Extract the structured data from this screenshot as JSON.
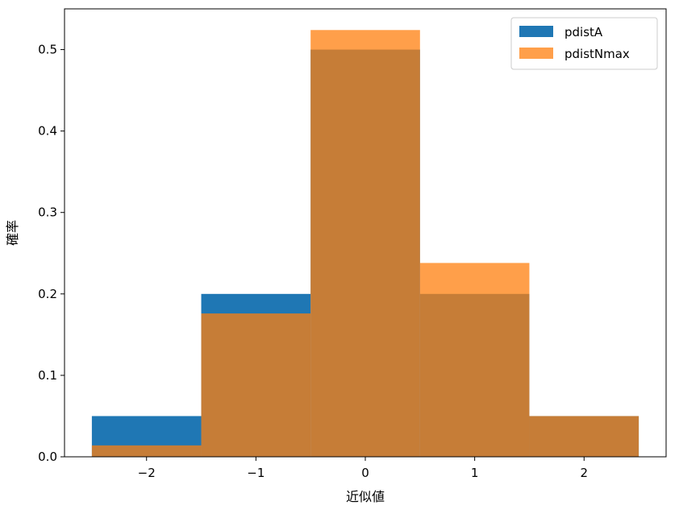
{
  "chart_data": {
    "type": "bar",
    "title": "",
    "xlabel": "近似値",
    "ylabel": "確率",
    "xlim": [
      -2.75,
      2.75
    ],
    "ylim": [
      0.0,
      0.55
    ],
    "xticks": [
      -2,
      -1,
      0,
      1,
      2
    ],
    "xtick_labels": [
      "−2",
      "−1",
      "0",
      "1",
      "2"
    ],
    "yticks": [
      0.0,
      0.1,
      0.2,
      0.3,
      0.4,
      0.5
    ],
    "ytick_labels": [
      "0.0",
      "0.1",
      "0.2",
      "0.3",
      "0.4",
      "0.5"
    ],
    "bins": [
      [
        -2.5,
        -1.5
      ],
      [
        -1.5,
        -0.5
      ],
      [
        -0.5,
        0.5
      ],
      [
        0.5,
        1.5
      ],
      [
        1.5,
        2.5
      ]
    ],
    "grid": false,
    "legend_position": "top-right",
    "series": [
      {
        "name": "pdistA",
        "color": "#1f77b4",
        "alpha": 1.0,
        "values": [
          0.05,
          0.2,
          0.5,
          0.2,
          0.05
        ]
      },
      {
        "name": "pdistNmax",
        "color": "#ff7f0e",
        "alpha": 0.75,
        "values": [
          0.014,
          0.176,
          0.524,
          0.238,
          0.05
        ]
      }
    ]
  }
}
